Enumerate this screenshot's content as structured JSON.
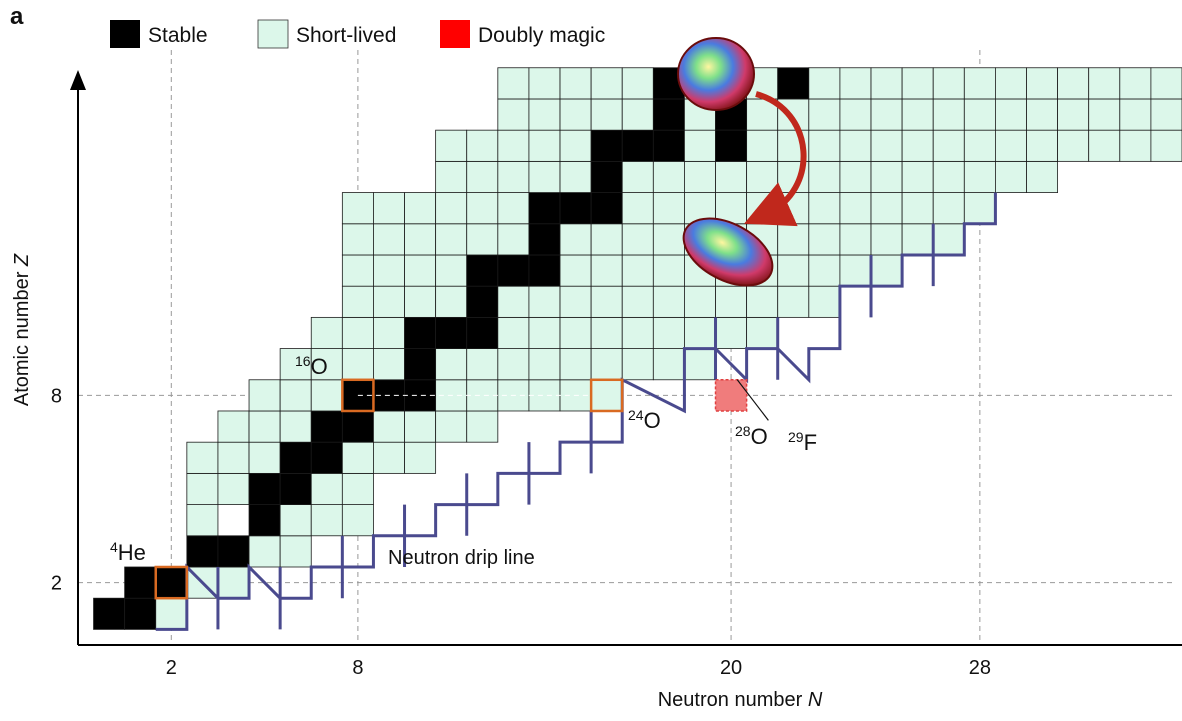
{
  "chart_data": {
    "type": "nuclide-chart",
    "panel_label": "a",
    "legend": [
      "Stable",
      "Short-lived",
      "Doubly magic"
    ],
    "legend_colors": [
      "#000000",
      "#dcf7ea",
      "#ff0000"
    ],
    "x_label": {
      "text": "Neutron number ",
      "var": "N"
    },
    "y_label": {
      "text": "Atomic number ",
      "var": "Z"
    },
    "xlim": [
      -1,
      34.5
    ],
    "ylim": [
      0,
      18.3
    ],
    "xticks": [
      2,
      8,
      20,
      28
    ],
    "yticks": [
      2,
      8
    ],
    "grid": true,
    "annotations": [
      {
        "mass": 4,
        "symbol": "He"
      },
      {
        "mass": 16,
        "symbol": "O"
      },
      {
        "mass": 24,
        "symbol": "O"
      },
      {
        "mass": 28,
        "symbol": "O"
      },
      {
        "mass": 29,
        "symbol": "F"
      }
    ],
    "drip_line_label": "Neutron drip line"
  }
}
